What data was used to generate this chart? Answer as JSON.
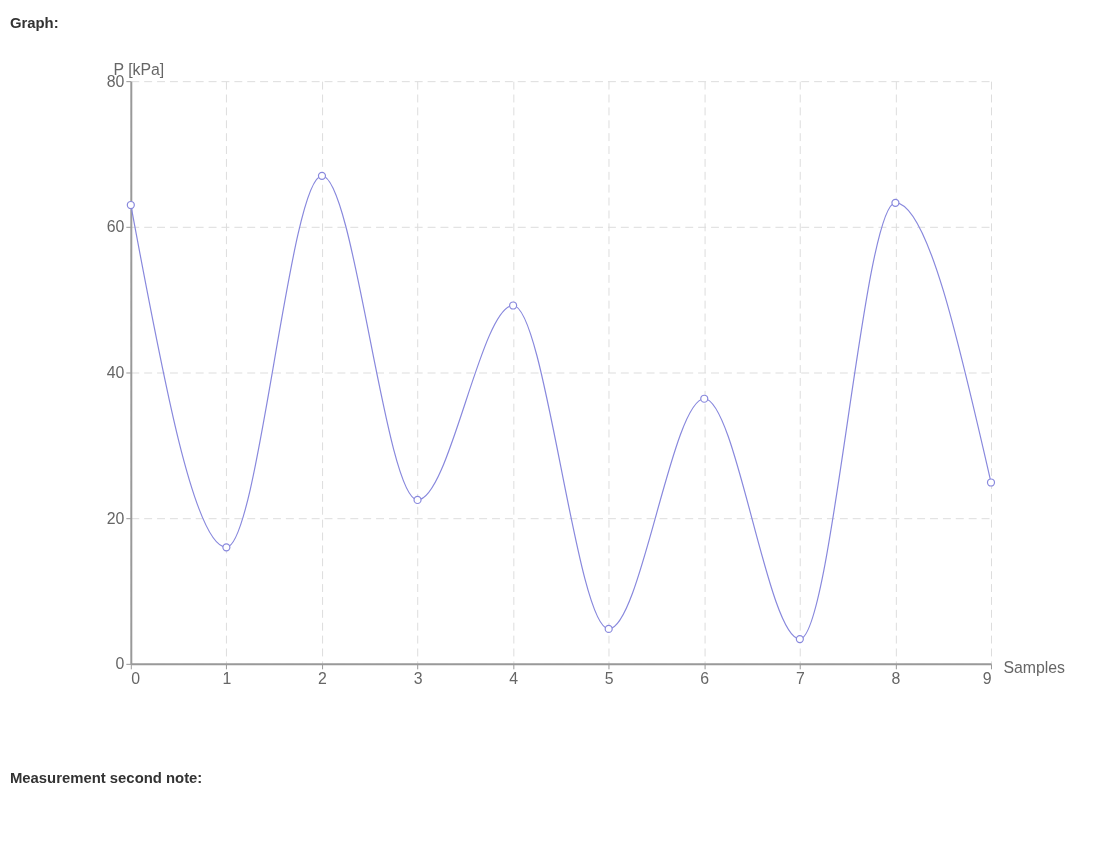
{
  "chart_data": {
    "type": "line",
    "title": "Graph:",
    "xlabel": "Samples",
    "ylabel": "P [kPa]",
    "annotations": [
      "Measurement second note:"
    ],
    "x": [
      0,
      1,
      2,
      3,
      4,
      5,
      6,
      7,
      8,
      9
    ],
    "series": [
      {
        "color": "#8888dd",
        "values": [
          63,
          16,
          67,
          22.5,
          49.2,
          4.8,
          36.4,
          3.4,
          63.3,
          24.9
        ]
      }
    ],
    "xlim": [
      0,
      9
    ],
    "xticks": [
      0,
      1,
      2,
      3,
      4,
      5,
      6,
      7,
      8,
      9
    ],
    "ylim": [
      0,
      80
    ],
    "yticks": [
      0,
      20,
      40,
      60,
      80
    ],
    "grid": true,
    "marker": "circle",
    "line_style": "solid"
  }
}
